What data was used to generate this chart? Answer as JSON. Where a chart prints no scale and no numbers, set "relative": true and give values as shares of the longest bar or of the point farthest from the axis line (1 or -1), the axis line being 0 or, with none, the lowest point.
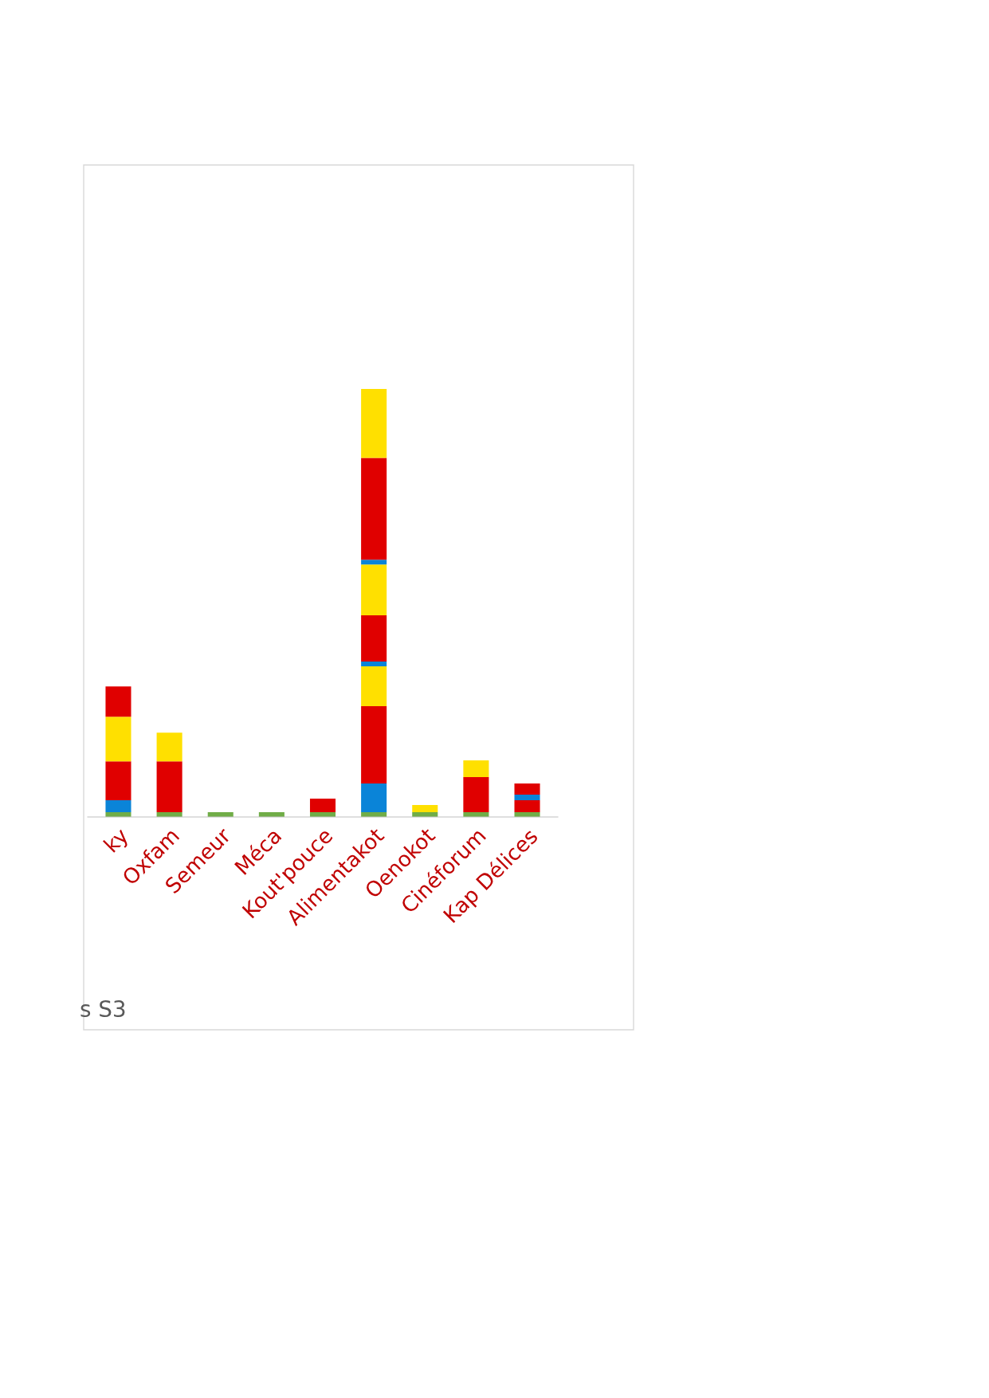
{
  "chart_data": {
    "type": "bar",
    "stacked": true,
    "relative": true,
    "categories": [
      "ky",
      "Oxfam",
      "Semeur",
      "Méca",
      "Kout'pouce",
      "Alimentakot",
      "Oenokot",
      "Cinéforum",
      "Kap Délices"
    ],
    "series": [
      {
        "color": "#70ad47",
        "values": [
          0.011,
          0.011,
          0.011,
          0.011,
          0.011,
          0.011,
          0.011,
          0.011,
          0.011
        ]
      },
      {
        "color": "#0a84d8",
        "values": [
          0.028,
          null,
          null,
          null,
          null,
          0.067,
          null,
          null,
          null
        ]
      },
      {
        "color": "#e00000",
        "values": [
          0.091,
          0.119,
          null,
          null,
          0.032,
          0.181,
          null,
          0.082,
          0.028
        ]
      },
      {
        "color": "#ffe000",
        "values": [
          0.104,
          0.067,
          null,
          null,
          null,
          0.093,
          0.017,
          0.039,
          null
        ]
      },
      {
        "color": "#0a84d8",
        "values": [
          null,
          null,
          null,
          null,
          null,
          0.011,
          null,
          null,
          0.013
        ]
      },
      {
        "color": "#e00000",
        "values": [
          0.071,
          null,
          null,
          null,
          null,
          0.108,
          null,
          null,
          0.026
        ]
      },
      {
        "color": "#ffe000",
        "values": [
          null,
          null,
          null,
          null,
          null,
          0.119,
          null,
          null,
          null
        ]
      },
      {
        "color": "#0a84d8",
        "values": [
          null,
          null,
          null,
          null,
          null,
          0.011,
          null,
          null,
          null
        ]
      },
      {
        "color": "#e00000",
        "values": [
          null,
          null,
          null,
          null,
          null,
          0.238,
          null,
          null,
          null
        ]
      },
      {
        "color": "#ffe000",
        "values": [
          null,
          null,
          null,
          null,
          null,
          0.161,
          null,
          null,
          null
        ]
      }
    ],
    "annotations": [
      "s S3"
    ]
  }
}
